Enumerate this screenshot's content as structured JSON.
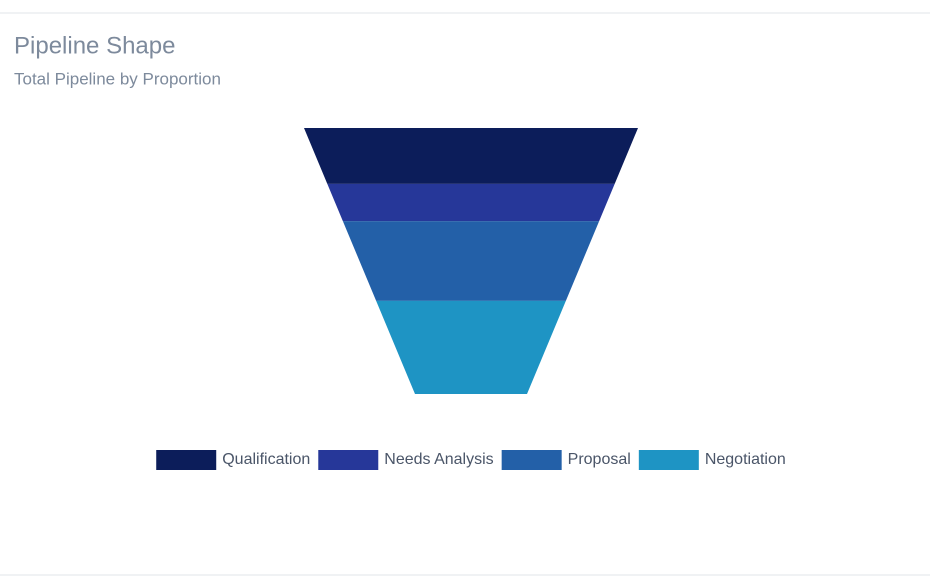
{
  "chart_data": {
    "type": "funnel",
    "title": "Pipeline Shape",
    "subtitle": "Total Pipeline by Proportion",
    "series": [
      {
        "name": "Qualification",
        "color": "#0c1d5a",
        "values": [
          21
        ]
      },
      {
        "name": "Needs Analysis",
        "color": "#263799",
        "values": [
          14
        ]
      },
      {
        "name": "Proposal",
        "color": "#2360a8",
        "values": [
          30
        ]
      },
      {
        "name": "Negotiation",
        "color": "#1e94c4",
        "values": [
          35
        ]
      }
    ],
    "legend": "bottom"
  }
}
